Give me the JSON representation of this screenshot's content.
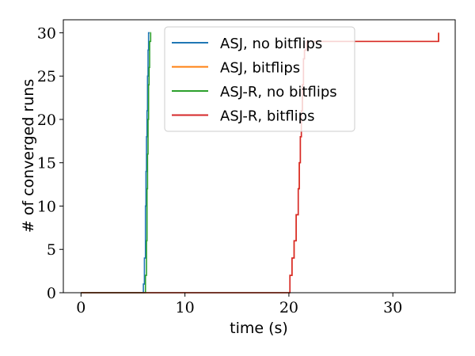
{
  "chart_data": {
    "type": "line",
    "title": "",
    "xlabel": "time (s)",
    "ylabel": "# of converged runs",
    "xlim": [
      -1.7,
      36.0
    ],
    "ylim": [
      0,
      31.5
    ],
    "xticks": [
      0,
      10,
      20,
      30
    ],
    "yticks": [
      0,
      5,
      10,
      15,
      20,
      25,
      30
    ],
    "grid": false,
    "legend_position": "top-right",
    "series": [
      {
        "name": "ASJ, no bitflips",
        "color": "#1f77b4",
        "x": [
          0,
          6.0,
          6.0,
          6.1,
          6.1,
          6.2,
          6.2,
          6.25,
          6.25,
          6.3,
          6.3,
          6.35,
          6.35,
          6.4,
          6.4,
          6.45,
          6.45,
          6.5,
          6.5,
          6.6
        ],
        "y": [
          0,
          0,
          1,
          1,
          4,
          4,
          10,
          10,
          14,
          14,
          18,
          18,
          21,
          21,
          25,
          25,
          28,
          28,
          30,
          30
        ]
      },
      {
        "name": "ASJ, bitflips",
        "color": "#ff7f0e",
        "x": [
          0,
          20.1,
          20.1,
          20.3,
          20.3,
          20.5,
          20.5,
          20.7,
          20.7,
          20.9,
          20.9,
          21.0,
          21.0,
          21.1,
          21.1,
          21.2,
          21.2,
          21.3,
          21.3,
          21.4,
          21.4,
          21.5,
          21.5,
          21.7,
          21.7,
          34.4,
          34.4
        ],
        "y": [
          0,
          0,
          2,
          2,
          4,
          4,
          6,
          6,
          9,
          9,
          12,
          12,
          15,
          15,
          18,
          18,
          21,
          21,
          24,
          24,
          27,
          27,
          28,
          28,
          29,
          29,
          30
        ]
      },
      {
        "name": "ASJ-R, no bitflips",
        "color": "#2ca02c",
        "x": [
          0,
          6.2,
          6.2,
          6.3,
          6.3,
          6.35,
          6.35,
          6.4,
          6.4,
          6.45,
          6.45,
          6.5,
          6.5,
          6.55,
          6.55,
          6.6,
          6.6,
          6.7,
          6.7,
          6.75
        ],
        "y": [
          0,
          0,
          2,
          2,
          6,
          6,
          12,
          12,
          16,
          16,
          20,
          20,
          24,
          24,
          26,
          26,
          29,
          29,
          30,
          30
        ]
      },
      {
        "name": "ASJ-R, bitflips",
        "color": "#d62728",
        "x": [
          0,
          20.1,
          20.1,
          20.3,
          20.3,
          20.5,
          20.5,
          20.7,
          20.7,
          20.9,
          20.9,
          21.0,
          21.0,
          21.1,
          21.1,
          21.2,
          21.2,
          21.3,
          21.3,
          21.4,
          21.4,
          21.5,
          21.5,
          21.7,
          21.7,
          34.4,
          34.4
        ],
        "y": [
          0,
          0,
          2,
          2,
          4,
          4,
          6,
          6,
          9,
          9,
          12,
          12,
          15,
          15,
          18,
          18,
          21,
          21,
          24,
          24,
          27,
          27,
          28,
          28,
          29,
          29,
          30
        ]
      }
    ]
  }
}
